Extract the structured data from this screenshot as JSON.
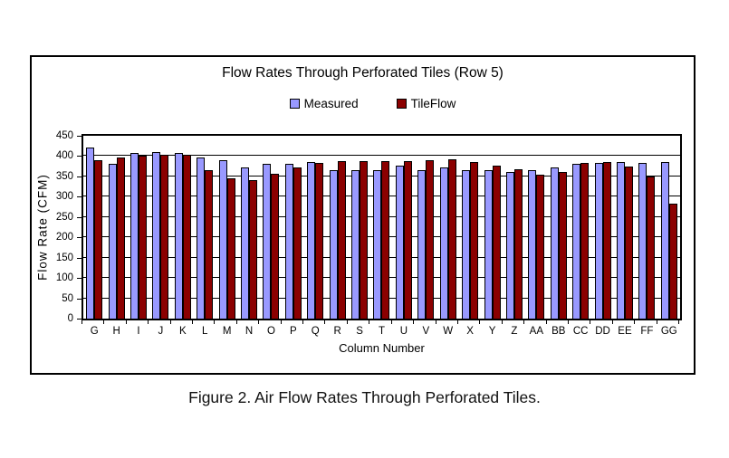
{
  "figure": {
    "caption": "Figure 2. Air Flow Rates Through Perforated Tiles."
  },
  "chart_data": {
    "type": "bar",
    "title": "Flow Rates Through Perforated Tiles (Row 5)",
    "xlabel": "Column Number",
    "ylabel": "Flow Rate (CFM)",
    "ylim": [
      0,
      450
    ],
    "ytick_step": 50,
    "grid": "horizontal",
    "legend_position": "top-center",
    "categories": [
      "G",
      "H",
      "I",
      "J",
      "K",
      "L",
      "M",
      "N",
      "O",
      "P",
      "Q",
      "R",
      "S",
      "T",
      "U",
      "V",
      "W",
      "X",
      "Y",
      "Z",
      "AA",
      "BB",
      "CC",
      "DD",
      "EE",
      "FF",
      "GG"
    ],
    "series": [
      {
        "name": "Measured",
        "color": "#9999FF",
        "values": [
          420,
          381,
          407,
          411,
          407,
          396,
          391,
          372,
          380,
          380,
          385,
          365,
          365,
          365,
          377,
          365,
          372,
          365,
          365,
          361,
          365,
          371,
          381,
          383,
          385,
          384,
          385
        ]
      },
      {
        "name": "TileFlow",
        "color": "#8B0000",
        "values": [
          391,
          396,
          401,
          403,
          403,
          366,
          346,
          341,
          357,
          373,
          383,
          388,
          388,
          388,
          388,
          390,
          392,
          385,
          376,
          367,
          354,
          361,
          383,
          386,
          375,
          349,
          284
        ]
      }
    ]
  }
}
